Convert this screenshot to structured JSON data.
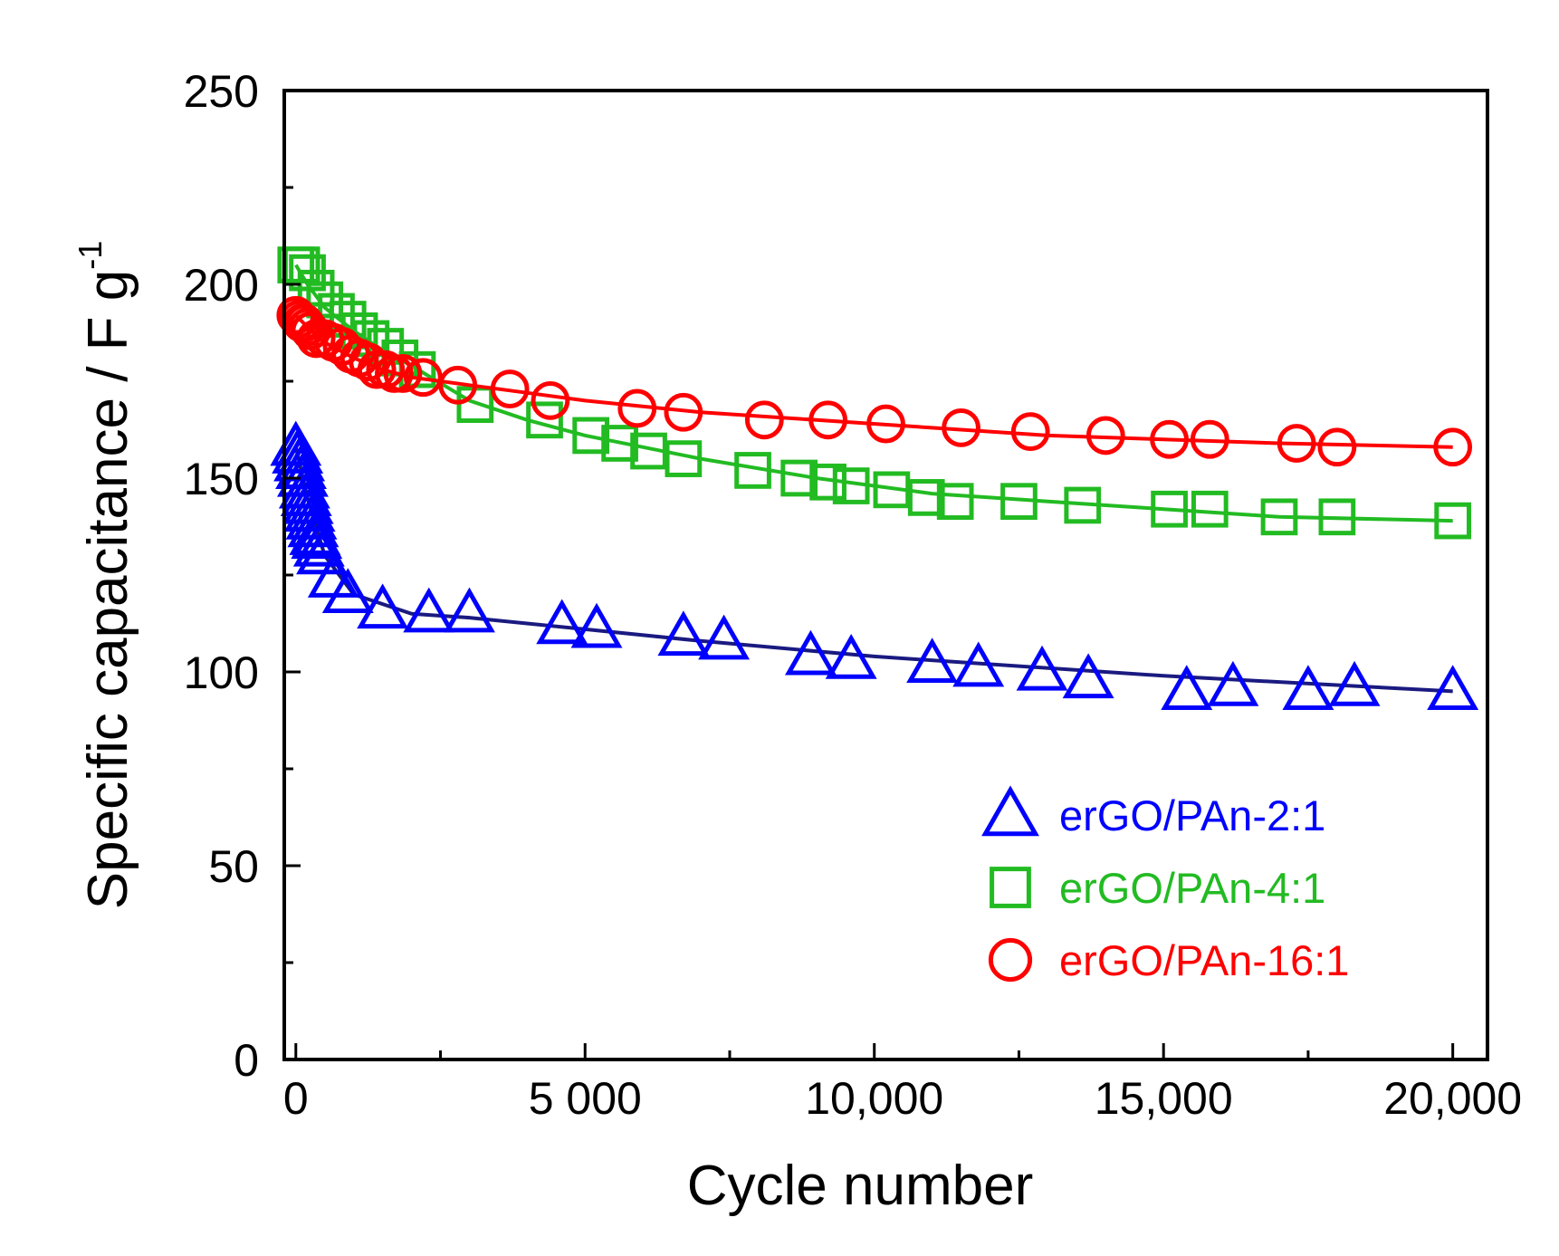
{
  "chart_data": {
    "type": "scatter",
    "xlabel": "Cycle number",
    "ylabel_main": "Specific capacitance / F g",
    "ylabel_sup": "-1",
    "xlim": [
      -200,
      20600
    ],
    "ylim": [
      0,
      250
    ],
    "x_ticks": [
      {
        "value": 0,
        "label": "0"
      },
      {
        "value": 5000,
        "label": "5 000"
      },
      {
        "value": 10000,
        "label": "10,000"
      },
      {
        "value": 15000,
        "label": "15,000"
      },
      {
        "value": 20000,
        "label": "20,000"
      }
    ],
    "y_ticks": [
      {
        "value": 0,
        "label": "0"
      },
      {
        "value": 50,
        "label": "50"
      },
      {
        "value": 100,
        "label": "100"
      },
      {
        "value": 150,
        "label": "150"
      },
      {
        "value": 200,
        "label": "200"
      },
      {
        "value": 250,
        "label": "250"
      }
    ],
    "legend_position": "bottom-right",
    "series": [
      {
        "name": "erGO/PAn-2:1",
        "marker": "triangle",
        "color": "#0000ff",
        "line_color": "#1a1a80",
        "fit": {
          "x": [
            0,
            200,
            500,
            1000,
            2000,
            3000,
            5000,
            7000,
            10000,
            15000,
            20000
          ],
          "y": [
            158,
            145,
            130,
            120,
            115,
            114,
            111,
            108,
            104,
            99,
            95
          ]
        },
        "points": [
          {
            "x": 0,
            "y": 158
          },
          {
            "x": 30,
            "y": 156
          },
          {
            "x": 60,
            "y": 154
          },
          {
            "x": 90,
            "y": 152
          },
          {
            "x": 120,
            "y": 150
          },
          {
            "x": 150,
            "y": 147
          },
          {
            "x": 180,
            "y": 145
          },
          {
            "x": 210,
            "y": 143
          },
          {
            "x": 240,
            "y": 141
          },
          {
            "x": 270,
            "y": 139
          },
          {
            "x": 300,
            "y": 137
          },
          {
            "x": 330,
            "y": 135
          },
          {
            "x": 360,
            "y": 134
          },
          {
            "x": 400,
            "y": 132
          },
          {
            "x": 450,
            "y": 130
          },
          {
            "x": 650,
            "y": 124
          },
          {
            "x": 900,
            "y": 120
          },
          {
            "x": 1500,
            "y": 116
          },
          {
            "x": 2300,
            "y": 115
          },
          {
            "x": 3000,
            "y": 115
          },
          {
            "x": 4600,
            "y": 112
          },
          {
            "x": 5200,
            "y": 111
          },
          {
            "x": 6700,
            "y": 109
          },
          {
            "x": 7400,
            "y": 108
          },
          {
            "x": 8900,
            "y": 104
          },
          {
            "x": 9600,
            "y": 103
          },
          {
            "x": 11000,
            "y": 102
          },
          {
            "x": 11800,
            "y": 101
          },
          {
            "x": 12900,
            "y": 100
          },
          {
            "x": 13700,
            "y": 98
          },
          {
            "x": 15400,
            "y": 95
          },
          {
            "x": 16200,
            "y": 96
          },
          {
            "x": 17500,
            "y": 95
          },
          {
            "x": 18300,
            "y": 96
          },
          {
            "x": 20000,
            "y": 95
          }
        ]
      },
      {
        "name": "erGO/PAn-4:1",
        "marker": "square",
        "color": "#22bb22",
        "line_color": "#22bb22",
        "fit": {
          "x": [
            0,
            200,
            500,
            1000,
            1500,
            2000,
            3000,
            4000,
            5000,
            7000,
            9000,
            11000,
            13000,
            15000,
            17000,
            20000
          ],
          "y": [
            205,
            200,
            194,
            188,
            183,
            179,
            170,
            165,
            161,
            155,
            150,
            146,
            144,
            142,
            140,
            139
          ]
        },
        "points": [
          {
            "x": 0,
            "y": 205
          },
          {
            "x": 100,
            "y": 205
          },
          {
            "x": 200,
            "y": 203
          },
          {
            "x": 350,
            "y": 199
          },
          {
            "x": 500,
            "y": 196
          },
          {
            "x": 700,
            "y": 193
          },
          {
            "x": 900,
            "y": 191
          },
          {
            "x": 1100,
            "y": 188
          },
          {
            "x": 1300,
            "y": 186
          },
          {
            "x": 1550,
            "y": 184
          },
          {
            "x": 1800,
            "y": 181
          },
          {
            "x": 2100,
            "y": 178
          },
          {
            "x": 3100,
            "y": 169
          },
          {
            "x": 4300,
            "y": 165
          },
          {
            "x": 5100,
            "y": 161
          },
          {
            "x": 5600,
            "y": 159
          },
          {
            "x": 6100,
            "y": 157
          },
          {
            "x": 6700,
            "y": 155
          },
          {
            "x": 7900,
            "y": 152
          },
          {
            "x": 8700,
            "y": 150
          },
          {
            "x": 9200,
            "y": 149
          },
          {
            "x": 9600,
            "y": 148
          },
          {
            "x": 10300,
            "y": 147
          },
          {
            "x": 10900,
            "y": 145
          },
          {
            "x": 11400,
            "y": 144
          },
          {
            "x": 12500,
            "y": 144
          },
          {
            "x": 13600,
            "y": 143
          },
          {
            "x": 15100,
            "y": 142
          },
          {
            "x": 15800,
            "y": 142
          },
          {
            "x": 17000,
            "y": 140
          },
          {
            "x": 18000,
            "y": 140
          },
          {
            "x": 20000,
            "y": 139
          }
        ]
      },
      {
        "name": "erGO/PAn-16:1",
        "marker": "circle",
        "color": "#ff0000",
        "line_color": "#ff0000",
        "fit": {
          "x": [
            0,
            200,
            500,
            1000,
            1500,
            2000,
            3000,
            4000,
            5000,
            7000,
            9000,
            11000,
            13000,
            15000,
            17000,
            20000
          ],
          "y": [
            192,
            189,
            185,
            181,
            178,
            176,
            174,
            172,
            170,
            167,
            165,
            163,
            161,
            160,
            159,
            158
          ]
        },
        "points": [
          {
            "x": 0,
            "y": 192
          },
          {
            "x": 50,
            "y": 191
          },
          {
            "x": 100,
            "y": 190
          },
          {
            "x": 150,
            "y": 190
          },
          {
            "x": 200,
            "y": 189
          },
          {
            "x": 250,
            "y": 188
          },
          {
            "x": 350,
            "y": 186
          },
          {
            "x": 500,
            "y": 186
          },
          {
            "x": 650,
            "y": 185
          },
          {
            "x": 800,
            "y": 184
          },
          {
            "x": 950,
            "y": 182
          },
          {
            "x": 1100,
            "y": 181
          },
          {
            "x": 1250,
            "y": 180
          },
          {
            "x": 1400,
            "y": 178
          },
          {
            "x": 1550,
            "y": 178
          },
          {
            "x": 1700,
            "y": 177
          },
          {
            "x": 1850,
            "y": 177
          },
          {
            "x": 2200,
            "y": 176
          },
          {
            "x": 2800,
            "y": 174
          },
          {
            "x": 3700,
            "y": 173
          },
          {
            "x": 4400,
            "y": 170
          },
          {
            "x": 5900,
            "y": 168
          },
          {
            "x": 6700,
            "y": 167
          },
          {
            "x": 8100,
            "y": 165
          },
          {
            "x": 9200,
            "y": 165
          },
          {
            "x": 10200,
            "y": 164
          },
          {
            "x": 11500,
            "y": 163
          },
          {
            "x": 12700,
            "y": 162
          },
          {
            "x": 14000,
            "y": 161
          },
          {
            "x": 15100,
            "y": 160
          },
          {
            "x": 15800,
            "y": 160
          },
          {
            "x": 17300,
            "y": 159
          },
          {
            "x": 18000,
            "y": 158
          },
          {
            "x": 20000,
            "y": 158
          }
        ]
      }
    ]
  }
}
